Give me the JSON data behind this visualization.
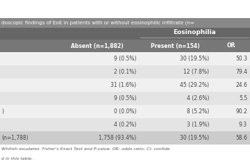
{
  "title": "doscopic findings of EoE in patients with or without eosinophilic infiltrate (n=",
  "header_group": "Eosinophilia",
  "col_headers": [
    "Absent (n=1,882)",
    "Present (n=154)",
    "OR"
  ],
  "rows": [
    [
      "9 (0.5%)",
      "30 (19.5%)",
      "50.3"
    ],
    [
      "2 (0.1%)",
      "12 (7.8%)",
      "79.4"
    ],
    [
      "31 (1.6%)",
      "45 (29.2%)",
      "24.6"
    ],
    [
      "9 (0.5%)",
      "4 (2.6%)",
      "5.5"
    ],
    [
      "0 (0.0%)",
      "8 (5.2%)",
      "90.2"
    ],
    [
      "4 (0.2%)",
      "3 (1.9%)",
      "9.3"
    ],
    [
      "1,758 (93.4%)",
      "30 (19.5%)",
      "58.6"
    ]
  ],
  "left_labels": [
    "",
    "",
    "",
    "",
    ")",
    "",
    "(n=1,788)"
  ],
  "footer1": "Whitish exudates. Fisher's Exact Test and P-value; OR: odds ratio; CI: confide",
  "footer2": "d in this table.",
  "bg_title": "#888888",
  "bg_header_group": "#666666",
  "bg_col_header": "#777777",
  "row_colors": [
    "#f0f0f0",
    "#e4e4e4",
    "#f0f0f0",
    "#e4e4e4",
    "#f0f0f0",
    "#e4e4e4",
    "#cccccc"
  ],
  "text_white": "#ffffff",
  "text_dark": "#444444",
  "text_footer": "#555555"
}
